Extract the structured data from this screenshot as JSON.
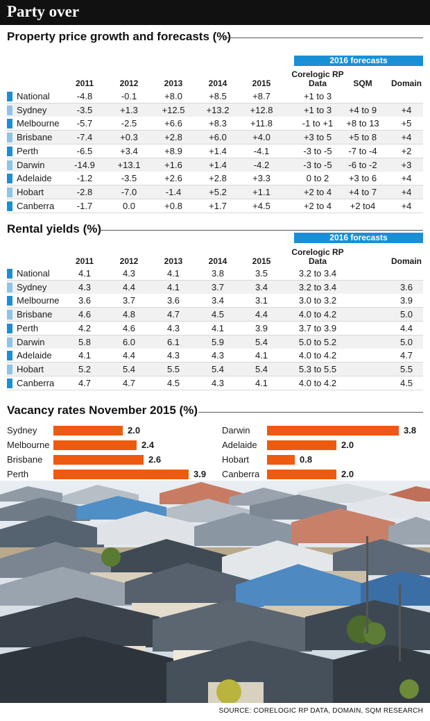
{
  "header": {
    "title": "Party over"
  },
  "colors": {
    "dark_mark": "#1a8fd6",
    "light_mark": "#8ec4e8",
    "vacancy_bar": "#ee5a0f",
    "banner": "#1a8fd6"
  },
  "chart_data": [
    {
      "type": "table",
      "title": "Property price growth and forecasts (%)",
      "forecast_banner": "2016 forecasts",
      "columns": [
        "2011",
        "2012",
        "2013",
        "2014",
        "2015",
        "Corelogic RP Data",
        "SQM",
        "Domain"
      ],
      "rows": [
        {
          "city": "National",
          "values": [
            "-4.8",
            "-0.1",
            "+8.0",
            "+8.5",
            "+8.7",
            "+1 to 3",
            "",
            ""
          ]
        },
        {
          "city": "Sydney",
          "values": [
            "-3.5",
            "+1.3",
            "+12.5",
            "+13.2",
            "+12.8",
            "+1 to 3",
            "+4 to 9",
            "+4"
          ]
        },
        {
          "city": "Melbourne",
          "values": [
            "-5.7",
            "-2.5",
            "+6.6",
            "+8.3",
            "+11.8",
            "-1 to +1",
            "+8 to 13",
            "+5"
          ]
        },
        {
          "city": "Brisbane",
          "values": [
            "-7.4",
            "+0.3",
            "+2.8",
            "+6.0",
            "+4.0",
            "+3 to 5",
            "+5 to 8",
            "+4"
          ]
        },
        {
          "city": "Perth",
          "values": [
            "-6.5",
            "+3.4",
            "+8.9",
            "+1.4",
            "-4.1",
            "-3 to -5",
            "-7 to -4",
            "+2"
          ]
        },
        {
          "city": "Darwin",
          "values": [
            "-14.9",
            "+13.1",
            "+1.6",
            "+1.4",
            "-4.2",
            "-3 to -5",
            "-6 to -2",
            "+3"
          ]
        },
        {
          "city": "Adelaide",
          "values": [
            "-1.2",
            "-3.5",
            "+2.6",
            "+2.8",
            "+3.3",
            "0 to 2",
            "+3 to 6",
            "+4"
          ]
        },
        {
          "city": "Hobart",
          "values": [
            "-2.8",
            "-7.0",
            "-1.4",
            "+5.2",
            "+1.1",
            "+2 to 4",
            "+4 to 7",
            "+4"
          ]
        },
        {
          "city": "Canberra",
          "values": [
            "-1.7",
            "0.0",
            "+0.8",
            "+1.7",
            "+4.5",
            "+2 to 4",
            "+2 to4",
            "+4"
          ]
        }
      ]
    },
    {
      "type": "table",
      "title": "Rental yields (%)",
      "forecast_banner": "2016 forecasts",
      "columns": [
        "2011",
        "2012",
        "2013",
        "2014",
        "2015",
        "Corelogic RP Data",
        "Domain"
      ],
      "rows": [
        {
          "city": "National",
          "values": [
            "4.1",
            "4.3",
            "4.1",
            "3.8",
            "3.5",
            "3.2 to 3.4",
            ""
          ]
        },
        {
          "city": "Sydney",
          "values": [
            "4.3",
            "4.4",
            "4.1",
            "3.7",
            "3.4",
            "3.2 to 3.4",
            "3.6"
          ]
        },
        {
          "city": "Melbourne",
          "values": [
            "3.6",
            "3.7",
            "3.6",
            "3.4",
            "3.1",
            "3.0 to 3.2",
            "3.9"
          ]
        },
        {
          "city": "Brisbane",
          "values": [
            "4.6",
            "4.8",
            "4.7",
            "4.5",
            "4.4",
            "4.0 to 4.2",
            "5.0"
          ]
        },
        {
          "city": "Perth",
          "values": [
            "4.2",
            "4.6",
            "4.3",
            "4.1",
            "3.9",
            "3.7 to 3.9",
            "4.4"
          ]
        },
        {
          "city": "Darwin",
          "values": [
            "5.8",
            "6.0",
            "6.1",
            "5.9",
            "5.4",
            "5.0 to 5.2",
            "5.0"
          ]
        },
        {
          "city": "Adelaide",
          "values": [
            "4.1",
            "4.4",
            "4.3",
            "4.3",
            "4.1",
            "4.0 to 4.2",
            "4.7"
          ]
        },
        {
          "city": "Hobart",
          "values": [
            "5.2",
            "5.4",
            "5.5",
            "5.4",
            "5.4",
            "5.3 to 5.5",
            "5.5"
          ]
        },
        {
          "city": "Canberra",
          "values": [
            "4.7",
            "4.7",
            "4.5",
            "4.3",
            "4.1",
            "4.0 to 4.2",
            "4.5"
          ]
        }
      ]
    },
    {
      "type": "bar",
      "orientation": "horizontal",
      "title": "Vacancy rates November 2015 (%)",
      "categories": [
        "Sydney",
        "Melbourne",
        "Brisbane",
        "Perth",
        "Darwin",
        "Adelaide",
        "Hobart",
        "Canberra"
      ],
      "values": [
        2.0,
        2.4,
        2.6,
        3.9,
        3.8,
        2.0,
        0.8,
        2.0
      ],
      "value_labels": [
        "2.0",
        "2.4",
        "2.6",
        "3.9",
        "3.8",
        "2.0",
        "0.8",
        "2.0"
      ],
      "layout": "two columns of four"
    }
  ],
  "footer": {
    "source": "SOURCE: CORELOGIC RP DATA, DOMAIN, SQM RESEARCH"
  }
}
